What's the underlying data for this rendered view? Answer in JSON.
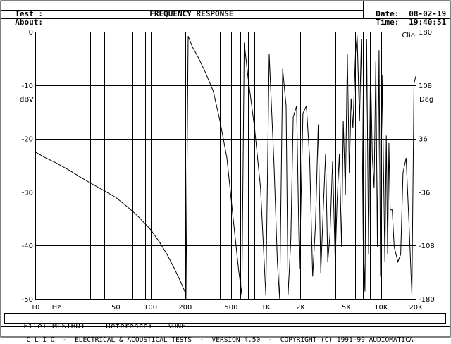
{
  "header": {
    "test_label": "Test :",
    "about_label": "About:",
    "title": "FREQUENCY RESPONSE",
    "date_label": "Date:",
    "date_value": "08-02-19",
    "time_label": "Time:",
    "time_value": "19:40:51"
  },
  "footer": {
    "file_label": "File:",
    "file_value": "MLSTHD1",
    "reference_label": "Reference:",
    "reference_value": "NONE",
    "banner": "C L I O  -  ELECTRICAL & ACOUSTICAL TESTS  -  VERSION 4.50  -  COPYRIGHT (C) 1991-99 AUDIOMATICA"
  },
  "chart_data": {
    "type": "line",
    "brand": "Clio",
    "xscale": "log",
    "xlim": [
      10,
      20000
    ],
    "xlabel": "Hz",
    "x_ticks": [
      {
        "value": 10,
        "label": "10"
      },
      {
        "value": 50,
        "label": "50"
      },
      {
        "value": 100,
        "label": "100"
      },
      {
        "value": 200,
        "label": "200"
      },
      {
        "value": 500,
        "label": "500"
      },
      {
        "value": 1000,
        "label": "1K"
      },
      {
        "value": 2000,
        "label": "2K"
      },
      {
        "value": 5000,
        "label": "5K"
      },
      {
        "value": 10000,
        "label": "10K"
      },
      {
        "value": 20000,
        "label": "20K"
      }
    ],
    "ylim": [
      -50,
      0
    ],
    "ylabel": "dBV",
    "y_ticks": [
      0,
      -10,
      -20,
      -30,
      -40,
      -50
    ],
    "y2lim": [
      -180,
      180
    ],
    "y2label": "Deg",
    "y2_ticks": [
      180,
      108,
      36,
      -36,
      -108,
      -180
    ],
    "grid": true,
    "series": [
      {
        "axis": "left",
        "x": [
          10,
          12,
          15,
          20,
          25,
          30,
          40,
          50,
          60,
          70,
          80,
          100,
          120,
          140,
          160,
          180,
          200
        ],
        "y": [
          -22.5,
          -23.5,
          -24.5,
          -26,
          -27.3,
          -28.3,
          -29.8,
          -31,
          -32.4,
          -33.6,
          -34.8,
          -37,
          -39.4,
          -41.8,
          -44.2,
          -46.5,
          -48.8
        ]
      },
      {
        "axis": "right",
        "x": [
          203,
          212,
          230,
          260,
          300,
          350,
          400,
          460,
          520,
          580,
          620,
          650,
          700,
          800,
          900,
          1000,
          1070,
          1180,
          1260,
          1320,
          1400,
          1500,
          1560,
          1650,
          1730,
          1850,
          1960,
          2100,
          2250,
          2400,
          2550,
          2700,
          2850,
          3000,
          3150,
          3300,
          3450,
          3600,
          3800,
          4000,
          4150,
          4350,
          4550,
          4700,
          4900,
          5100,
          5300,
          5500,
          5700,
          6000,
          6200,
          6500,
          6750,
          7000,
          7250,
          7500,
          7800,
          8100,
          8400,
          8700,
          9000,
          9300,
          9600,
          9900,
          10200,
          10500,
          10800,
          11100,
          11400,
          11700,
          12000,
          12500,
          13000,
          14000,
          14800,
          15500,
          16500,
          17500,
          18500,
          19300,
          20000
        ],
        "y": [
          -180,
          174,
          160,
          145,
          125,
          100,
          60,
          10,
          -70,
          -140,
          -175,
          165,
          120,
          50,
          -30,
          -175,
          150,
          0,
          -130,
          -180,
          130,
          80,
          -175,
          -100,
          65,
          80,
          -140,
          70,
          80,
          10,
          -150,
          -80,
          55,
          -145,
          -60,
          15,
          -130,
          -95,
          5,
          -130,
          -50,
          15,
          -110,
          60,
          -40,
          150,
          -10,
          90,
          50,
          150,
          175,
          60,
          170,
          -100,
          -170,
          170,
          -120,
          135,
          10,
          -30,
          140,
          -110,
          155,
          -150,
          122,
          0,
          -130,
          40,
          -120,
          30,
          -60,
          -60,
          -110,
          -130,
          -120,
          -10,
          10,
          -80,
          -175,
          110,
          120
        ]
      }
    ]
  }
}
